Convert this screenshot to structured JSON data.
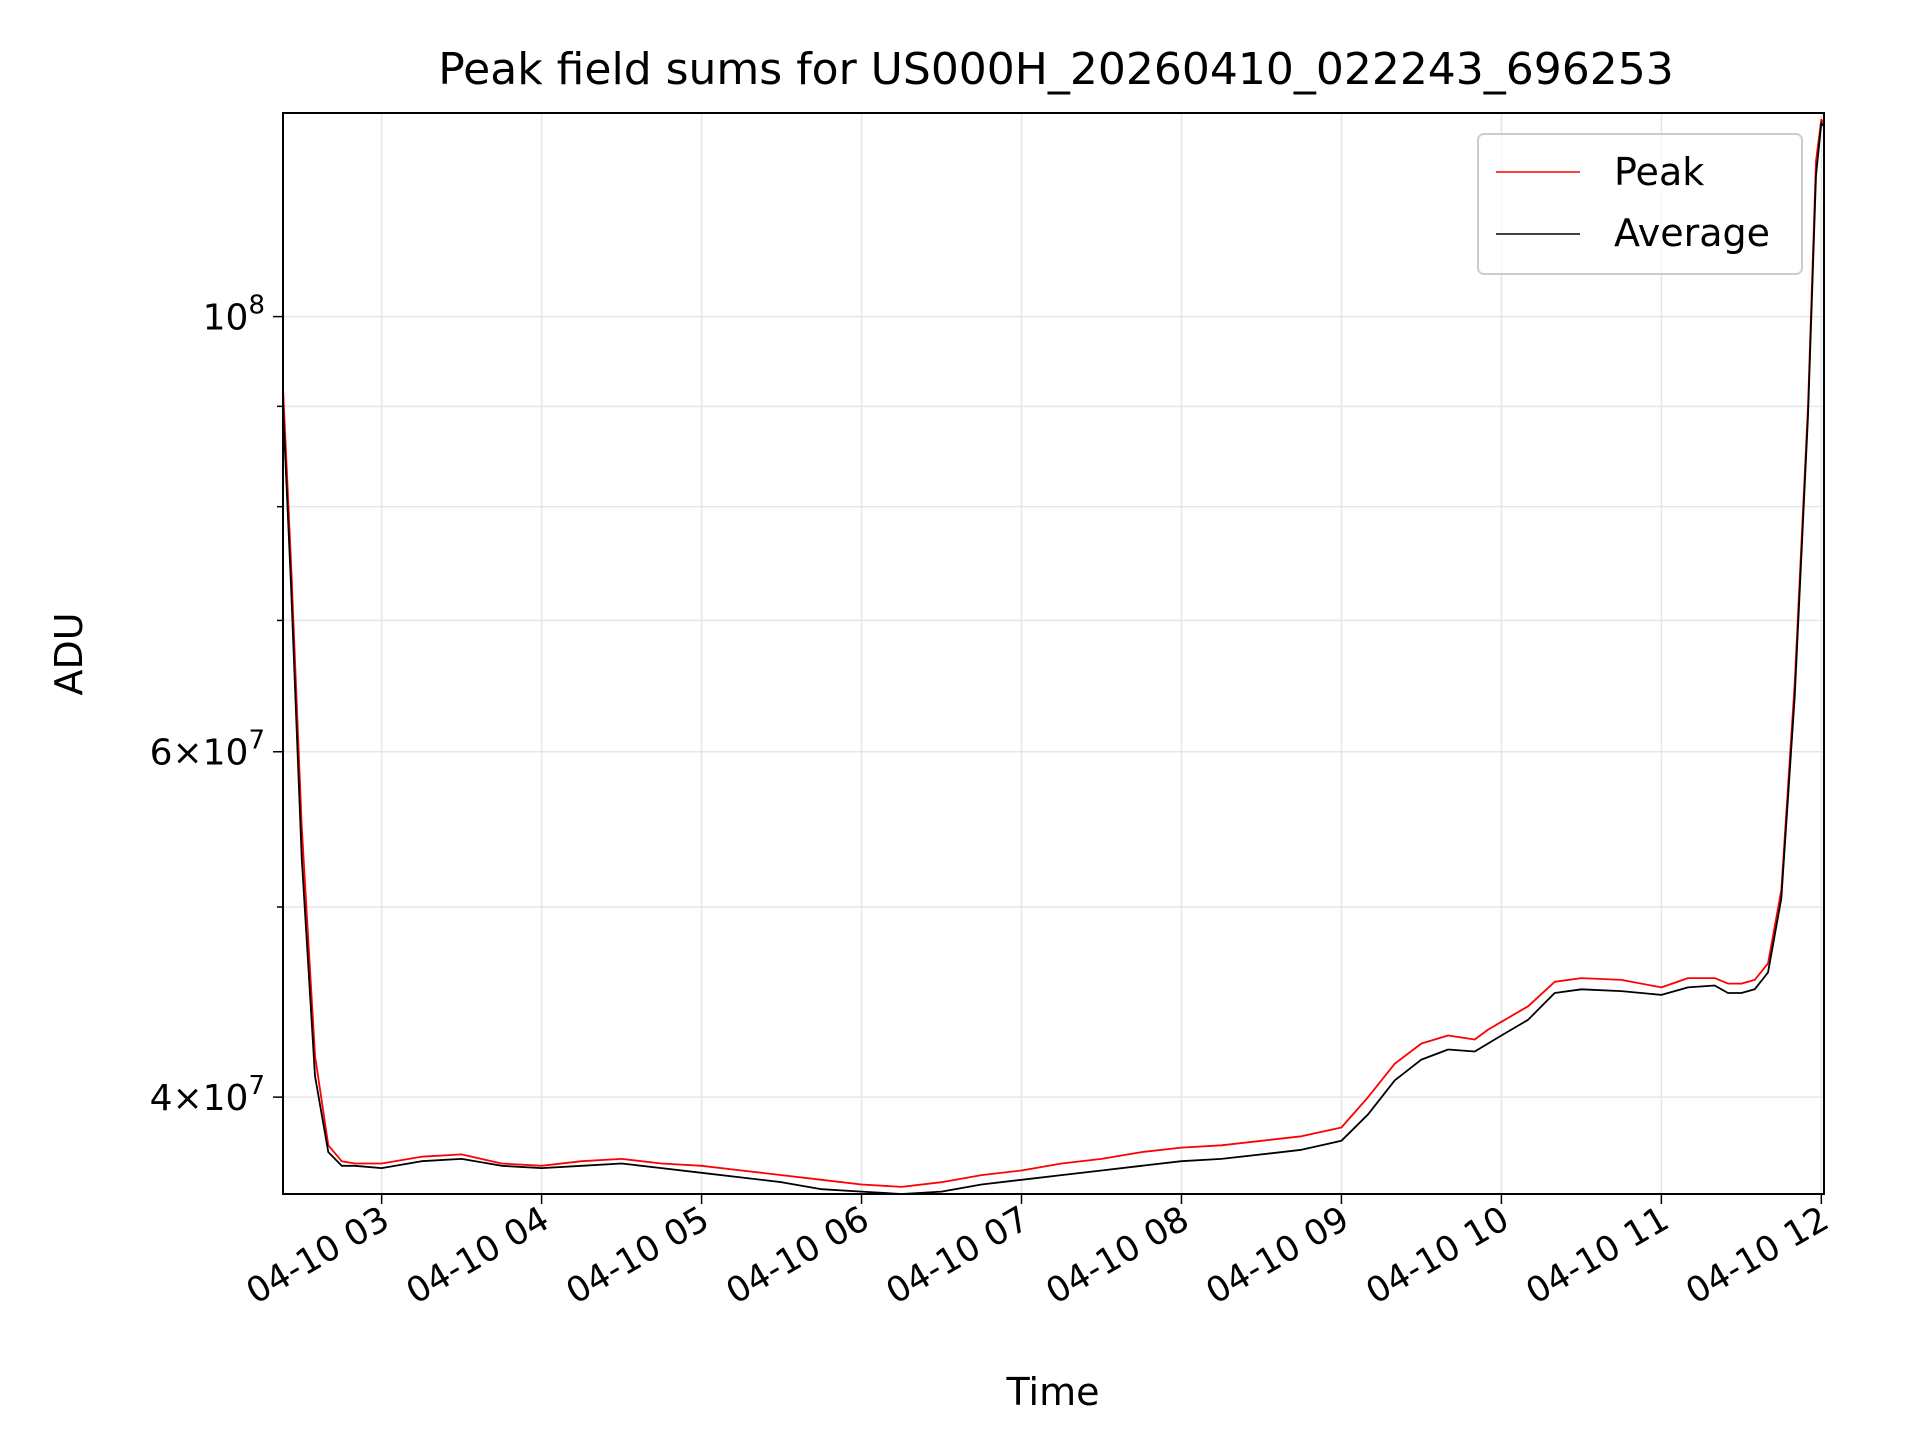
{
  "chart_data": {
    "type": "line",
    "title": "Peak field sums for US000H_20260410_022243_696253",
    "xlabel": "Time",
    "ylabel": "ADU",
    "x_scale": "time",
    "y_scale": "log",
    "xlim": [
      "2026-04-10 02:23",
      "2026-04-10 12:01"
    ],
    "ylim": [
      35700000,
      127000000
    ],
    "xticks": [
      {
        "value": "2026-04-10 03:00",
        "label": "04-10 03"
      },
      {
        "value": "2026-04-10 04:00",
        "label": "04-10 04"
      },
      {
        "value": "2026-04-10 05:00",
        "label": "04-10 05"
      },
      {
        "value": "2026-04-10 06:00",
        "label": "04-10 06"
      },
      {
        "value": "2026-04-10 07:00",
        "label": "04-10 07"
      },
      {
        "value": "2026-04-10 08:00",
        "label": "04-10 08"
      },
      {
        "value": "2026-04-10 09:00",
        "label": "04-10 09"
      },
      {
        "value": "2026-04-10 10:00",
        "label": "04-10 10"
      },
      {
        "value": "2026-04-10 11:00",
        "label": "04-10 11"
      },
      {
        "value": "2026-04-10 12:00",
        "label": "04-10 12"
      }
    ],
    "yticks_major": [
      {
        "value": 100000000,
        "base": "10",
        "exp": "8"
      },
      {
        "value": 60000000,
        "base": "6×10",
        "exp": "7"
      },
      {
        "value": 40000000,
        "base": "4×10",
        "exp": "7"
      }
    ],
    "yticks_minor": [
      50000000,
      70000000,
      80000000,
      90000000
    ],
    "grid": true,
    "legend_position": "top-right",
    "series": [
      {
        "name": "Peak",
        "color": "#ff0000",
        "x": [
          "2026-04-10 02:23",
          "2026-04-10 02:26",
          "2026-04-10 02:30",
          "2026-04-10 02:35",
          "2026-04-10 02:40",
          "2026-04-10 02:45",
          "2026-04-10 02:50",
          "2026-04-10 03:00",
          "2026-04-10 03:15",
          "2026-04-10 03:30",
          "2026-04-10 03:45",
          "2026-04-10 04:00",
          "2026-04-10 04:15",
          "2026-04-10 04:30",
          "2026-04-10 04:45",
          "2026-04-10 05:00",
          "2026-04-10 05:15",
          "2026-04-10 05:30",
          "2026-04-10 05:45",
          "2026-04-10 06:00",
          "2026-04-10 06:15",
          "2026-04-10 06:30",
          "2026-04-10 06:45",
          "2026-04-10 07:00",
          "2026-04-10 07:15",
          "2026-04-10 07:30",
          "2026-04-10 07:45",
          "2026-04-10 08:00",
          "2026-04-10 08:15",
          "2026-04-10 08:30",
          "2026-04-10 08:45",
          "2026-04-10 09:00",
          "2026-04-10 09:10",
          "2026-04-10 09:20",
          "2026-04-10 09:30",
          "2026-04-10 09:40",
          "2026-04-10 09:50",
          "2026-04-10 09:55",
          "2026-04-10 10:00",
          "2026-04-10 10:10",
          "2026-04-10 10:20",
          "2026-04-10 10:30",
          "2026-04-10 10:45",
          "2026-04-10 11:00",
          "2026-04-10 11:10",
          "2026-04-10 11:20",
          "2026-04-10 11:25",
          "2026-04-10 11:30",
          "2026-04-10 11:35",
          "2026-04-10 11:40",
          "2026-04-10 11:45",
          "2026-04-10 11:50",
          "2026-04-10 11:55",
          "2026-04-10 11:58",
          "2026-04-10 12:00",
          "2026-04-10 12:01"
        ],
        "values": [
          92000000,
          75000000,
          55000000,
          42000000,
          37800000,
          37100000,
          37000000,
          37000000,
          37300000,
          37400000,
          37000000,
          36900000,
          37100000,
          37200000,
          37000000,
          36900000,
          36700000,
          36500000,
          36300000,
          36100000,
          36000000,
          36200000,
          36500000,
          36700000,
          37000000,
          37200000,
          37500000,
          37700000,
          37800000,
          38000000,
          38200000,
          38600000,
          40000000,
          41600000,
          42600000,
          43000000,
          42800000,
          43300000,
          43700000,
          44500000,
          45800000,
          46000000,
          45900000,
          45500000,
          46000000,
          46000000,
          45700000,
          45700000,
          45900000,
          46800000,
          51000000,
          65000000,
          90000000,
          120000000,
          126000000,
          125500000
        ]
      },
      {
        "name": "Average",
        "color": "#000000",
        "x": [
          "2026-04-10 02:23",
          "2026-04-10 02:26",
          "2026-04-10 02:30",
          "2026-04-10 02:35",
          "2026-04-10 02:40",
          "2026-04-10 02:45",
          "2026-04-10 02:50",
          "2026-04-10 03:00",
          "2026-04-10 03:15",
          "2026-04-10 03:30",
          "2026-04-10 03:45",
          "2026-04-10 04:00",
          "2026-04-10 04:15",
          "2026-04-10 04:30",
          "2026-04-10 04:45",
          "2026-04-10 05:00",
          "2026-04-10 05:15",
          "2026-04-10 05:30",
          "2026-04-10 05:45",
          "2026-04-10 06:00",
          "2026-04-10 06:15",
          "2026-04-10 06:30",
          "2026-04-10 06:45",
          "2026-04-10 07:00",
          "2026-04-10 07:15",
          "2026-04-10 07:30",
          "2026-04-10 07:45",
          "2026-04-10 08:00",
          "2026-04-10 08:15",
          "2026-04-10 08:30",
          "2026-04-10 08:45",
          "2026-04-10 09:00",
          "2026-04-10 09:10",
          "2026-04-10 09:20",
          "2026-04-10 09:30",
          "2026-04-10 09:40",
          "2026-04-10 09:50",
          "2026-04-10 09:55",
          "2026-04-10 10:00",
          "2026-04-10 10:10",
          "2026-04-10 10:20",
          "2026-04-10 10:30",
          "2026-04-10 10:45",
          "2026-04-10 11:00",
          "2026-04-10 11:10",
          "2026-04-10 11:20",
          "2026-04-10 11:25",
          "2026-04-10 11:30",
          "2026-04-10 11:35",
          "2026-04-10 11:40",
          "2026-04-10 11:45",
          "2026-04-10 11:50",
          "2026-04-10 11:55",
          "2026-04-10 11:58",
          "2026-04-10 12:00",
          "2026-04-10 12:01"
        ],
        "values": [
          90000000,
          73000000,
          53000000,
          41000000,
          37500000,
          36900000,
          36900000,
          36800000,
          37100000,
          37200000,
          36900000,
          36800000,
          36900000,
          37000000,
          36800000,
          36600000,
          36400000,
          36200000,
          35900000,
          35800000,
          35700000,
          35800000,
          36100000,
          36300000,
          36500000,
          36700000,
          36900000,
          37100000,
          37200000,
          37400000,
          37600000,
          38000000,
          39200000,
          40800000,
          41800000,
          42300000,
          42200000,
          42600000,
          43000000,
          43800000,
          45200000,
          45400000,
          45300000,
          45100000,
          45500000,
          45600000,
          45200000,
          45200000,
          45400000,
          46300000,
          50500000,
          64000000,
          89000000,
          118000000,
          125500000,
          125000000
        ]
      }
    ]
  }
}
